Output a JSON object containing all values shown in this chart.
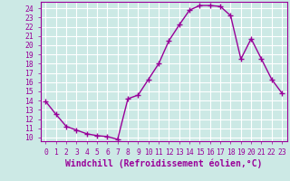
{
  "x": [
    0,
    1,
    2,
    3,
    4,
    5,
    6,
    7,
    8,
    9,
    10,
    11,
    12,
    13,
    14,
    15,
    16,
    17,
    18,
    19,
    20,
    21,
    22,
    23
  ],
  "y": [
    13.9,
    12.5,
    11.2,
    10.8,
    10.4,
    10.2,
    10.1,
    9.8,
    14.2,
    14.6,
    16.3,
    18.0,
    20.5,
    22.2,
    23.8,
    24.3,
    24.3,
    24.2,
    23.2,
    18.5,
    20.7,
    18.5,
    16.3,
    14.8
  ],
  "line_color": "#990099",
  "marker": "+",
  "markersize": 4,
  "linewidth": 1.0,
  "markeredgewidth": 1.0,
  "bg_color": "#cce9e5",
  "grid_color": "#ffffff",
  "xlabel": "Windchill (Refroidissement éolien,°C)",
  "xlabel_fontsize": 7,
  "ylabel_ticks": [
    10,
    11,
    12,
    13,
    14,
    15,
    16,
    17,
    18,
    19,
    20,
    21,
    22,
    23,
    24
  ],
  "xlim": [
    -0.5,
    23.5
  ],
  "ylim": [
    9.6,
    24.7
  ],
  "xticks": [
    0,
    1,
    2,
    3,
    4,
    5,
    6,
    7,
    8,
    9,
    10,
    11,
    12,
    13,
    14,
    15,
    16,
    17,
    18,
    19,
    20,
    21,
    22,
    23
  ],
  "tick_label_fontsize": 5.8
}
